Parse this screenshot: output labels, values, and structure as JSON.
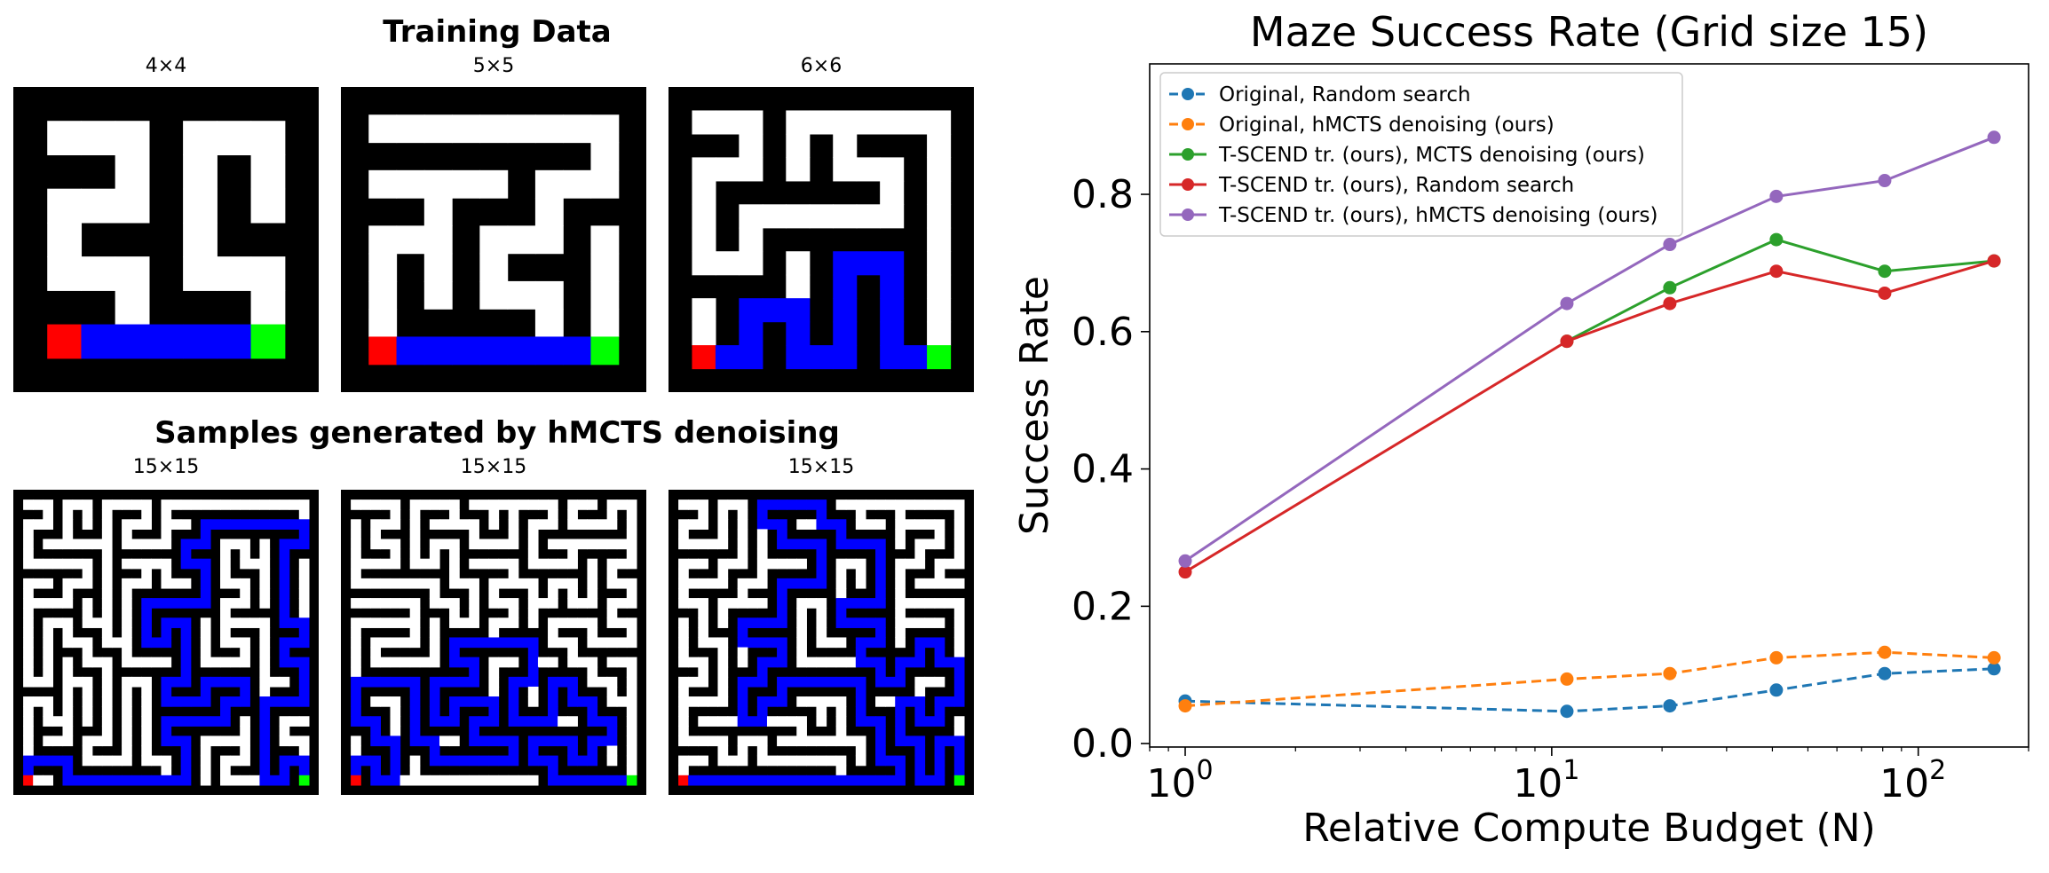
{
  "left_panel": {
    "training_title": "Training Data",
    "samples_title": "Samples generated by hMCTS denoising",
    "training_mazes": [
      {
        "label": "4×4",
        "size": 4,
        "seed": 3
      },
      {
        "label": "5×5",
        "size": 5,
        "seed": 11
      },
      {
        "label": "6×6",
        "size": 6,
        "seed": 29
      }
    ],
    "sample_mazes": [
      {
        "label": "15×15",
        "size": 15,
        "seed": 41
      },
      {
        "label": "15×15",
        "size": 15,
        "seed": 57
      },
      {
        "label": "15×15",
        "size": 15,
        "seed": 73
      }
    ],
    "colors": {
      "wall": "#000000",
      "floor": "#ffffff",
      "path": "#0000ff",
      "start": "#ff0000",
      "goal": "#00ff00"
    }
  },
  "chart_data": {
    "type": "line",
    "title": "Maze Success Rate (Grid size 15)",
    "xlabel": "Relative Compute Budget (N)",
    "ylabel": "Success Rate",
    "xscale": "log",
    "xlim": [
      0.8,
      200
    ],
    "ylim": [
      -0.005,
      0.99
    ],
    "yticks": [
      0.0,
      0.2,
      0.4,
      0.6,
      0.8
    ],
    "ytick_labels": [
      "0.0",
      "0.2",
      "0.4",
      "0.6",
      "0.8"
    ],
    "xticks": [
      1,
      10,
      100
    ],
    "xtick_bases": [
      "10",
      "10",
      "10"
    ],
    "xtick_exps": [
      "0",
      "1",
      "2"
    ],
    "legend_position": "upper-left",
    "series": [
      {
        "name": "Original, Random search",
        "color": "#1f77b4",
        "dashed": true,
        "x": [
          1,
          11,
          21,
          41,
          81,
          161
        ],
        "y": [
          0.062,
          0.047,
          0.055,
          0.078,
          0.102,
          0.109
        ]
      },
      {
        "name": "Original, hMCTS denoising (ours)",
        "color": "#ff7f0e",
        "dashed": true,
        "x": [
          1,
          11,
          21,
          41,
          81,
          161
        ],
        "y": [
          0.055,
          0.094,
          0.102,
          0.125,
          0.133,
          0.125
        ]
      },
      {
        "name": "T-SCEND tr. (ours), MCTS denoising (ours)",
        "color": "#2ca02c",
        "dashed": false,
        "x": [
          11,
          21,
          41,
          81,
          161
        ],
        "y": [
          0.586,
          0.664,
          0.734,
          0.688,
          0.703
        ]
      },
      {
        "name": "T-SCEND tr. (ours), Random search",
        "color": "#d62728",
        "dashed": false,
        "x": [
          1,
          11,
          21,
          41,
          81,
          161
        ],
        "y": [
          0.25,
          0.586,
          0.641,
          0.688,
          0.656,
          0.703
        ]
      },
      {
        "name": "T-SCEND tr. (ours), hMCTS denoising (ours)",
        "color": "#9467bd",
        "dashed": false,
        "x": [
          1,
          11,
          21,
          41,
          81,
          161
        ],
        "y": [
          0.266,
          0.641,
          0.727,
          0.797,
          0.82,
          0.883
        ]
      }
    ]
  }
}
